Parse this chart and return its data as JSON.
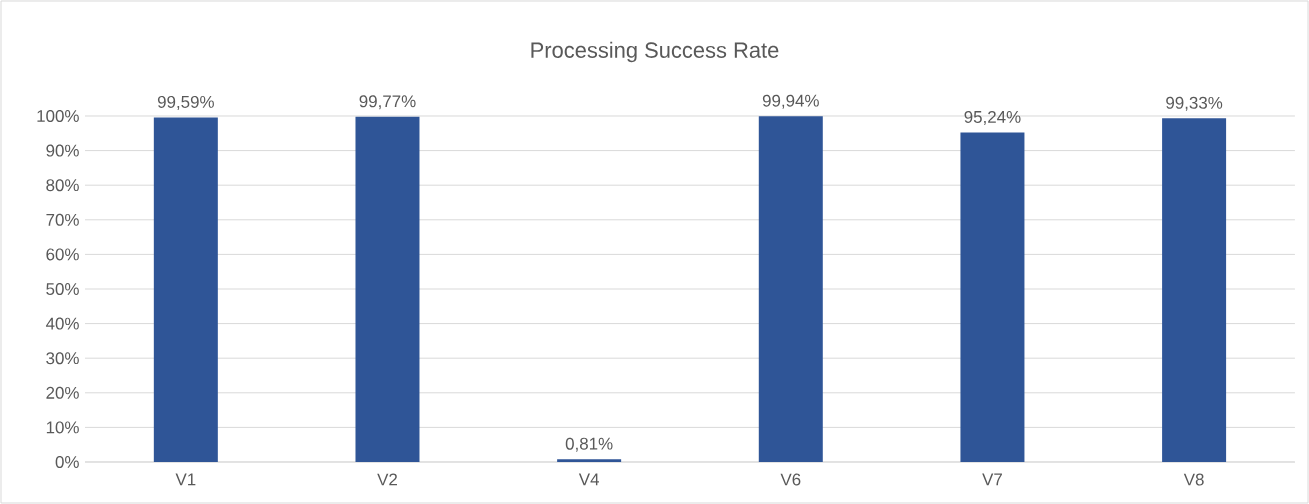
{
  "chart_data": {
    "type": "bar",
    "title": "Processing Success Rate",
    "categories": [
      "V1",
      "V2",
      "V4",
      "V6",
      "V7",
      "V8"
    ],
    "values": [
      99.59,
      99.77,
      0.81,
      99.94,
      95.24,
      99.33
    ],
    "value_labels": [
      "99,59%",
      "99,77%",
      "0,81%",
      "99,94%",
      "95,24%",
      "99,33%"
    ],
    "color": "#2f5597",
    "ylim": [
      0,
      100
    ],
    "yticks": [
      {
        "value": 0,
        "label": "0%"
      },
      {
        "value": 10,
        "label": "10%"
      },
      {
        "value": 20,
        "label": "20%"
      },
      {
        "value": 30,
        "label": "30%"
      },
      {
        "value": 40,
        "label": "40%"
      },
      {
        "value": 50,
        "label": "50%"
      },
      {
        "value": 60,
        "label": "60%"
      },
      {
        "value": 70,
        "label": "70%"
      },
      {
        "value": 80,
        "label": "80%"
      },
      {
        "value": 90,
        "label": "90%"
      },
      {
        "value": 100,
        "label": "100%"
      }
    ],
    "grid": "y"
  }
}
